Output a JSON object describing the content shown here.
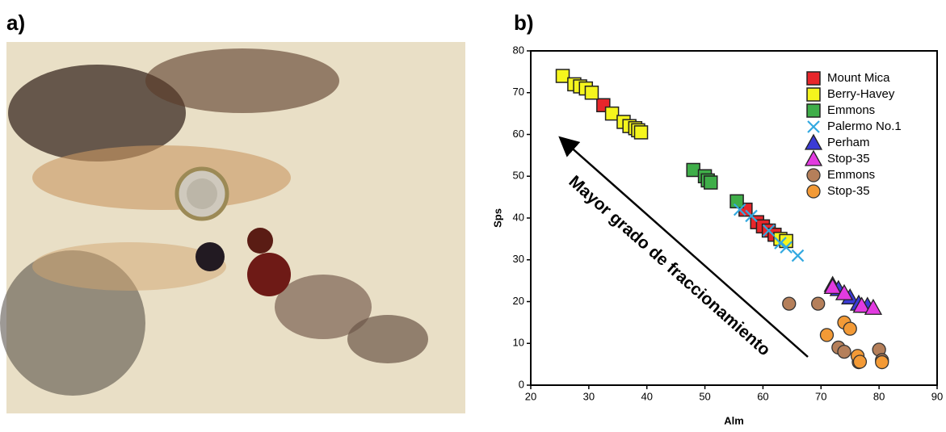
{
  "panels": [
    "a)",
    "b)"
  ],
  "chart_data": {
    "type": "scatter",
    "xlabel": "Alm",
    "ylabel": "Sps",
    "annotation": "Mayor grado de fraccionamiento",
    "xlim": [
      20,
      90
    ],
    "ylim": [
      0,
      80
    ],
    "xticks": [
      20,
      30,
      40,
      50,
      60,
      70,
      80,
      90
    ],
    "yticks": [
      0,
      10,
      20,
      30,
      40,
      50,
      60,
      70,
      80
    ],
    "legend": "upper-right",
    "series": [
      {
        "name": "Mount Mica",
        "color": "#e8262b",
        "marker": "square",
        "x": [
          32.5,
          57,
          59,
          60,
          61,
          62
        ],
        "values": [
          67,
          42,
          39,
          38,
          37,
          36
        ]
      },
      {
        "name": "Berry-Havey",
        "color": "#f5f51d",
        "marker": "square",
        "x": [
          25.5,
          27.5,
          28.5,
          29.5,
          30.5,
          34,
          36,
          37,
          38,
          38.5,
          39,
          63,
          64
        ],
        "values": [
          74,
          72,
          71.5,
          71,
          70,
          65,
          63,
          62,
          61.5,
          61,
          60.5,
          35,
          34.5
        ]
      },
      {
        "name": "Emmons",
        "color": "#3fae49",
        "marker": "square",
        "x": [
          48,
          50,
          50.5,
          51,
          55.5
        ],
        "values": [
          51.5,
          50,
          49,
          48.5,
          44
        ]
      },
      {
        "name": "Palermo No.1",
        "color": "#33a9e0",
        "marker": "x",
        "x": [
          56,
          58,
          61,
          63,
          64,
          66
        ],
        "values": [
          42,
          40.5,
          37,
          34,
          33,
          31
        ]
      },
      {
        "name": "Perham",
        "color": "#3b3bd6",
        "marker": "triangle",
        "x": [
          72,
          73,
          75,
          76.5,
          78
        ],
        "values": [
          24,
          23,
          21,
          19.5,
          19
        ]
      },
      {
        "name": "Stop-35",
        "color": "#e23be0",
        "marker": "triangle",
        "x": [
          72,
          74,
          77,
          79
        ],
        "values": [
          23.5,
          22,
          19,
          18.5
        ]
      },
      {
        "name": "Emmons",
        "color": "#b57f5a",
        "marker": "circle",
        "x": [
          64.5,
          69.5,
          73,
          74,
          76.5,
          80,
          80.5
        ],
        "values": [
          19.5,
          19.5,
          9,
          8,
          5.5,
          8.5,
          6
        ]
      },
      {
        "name": "Stop-35",
        "color": "#f39a36",
        "marker": "circle",
        "x": [
          71,
          74,
          75,
          76.3,
          76.7,
          80.5
        ],
        "values": [
          12,
          15,
          13.5,
          7,
          5.6,
          5.5
        ]
      }
    ]
  }
}
